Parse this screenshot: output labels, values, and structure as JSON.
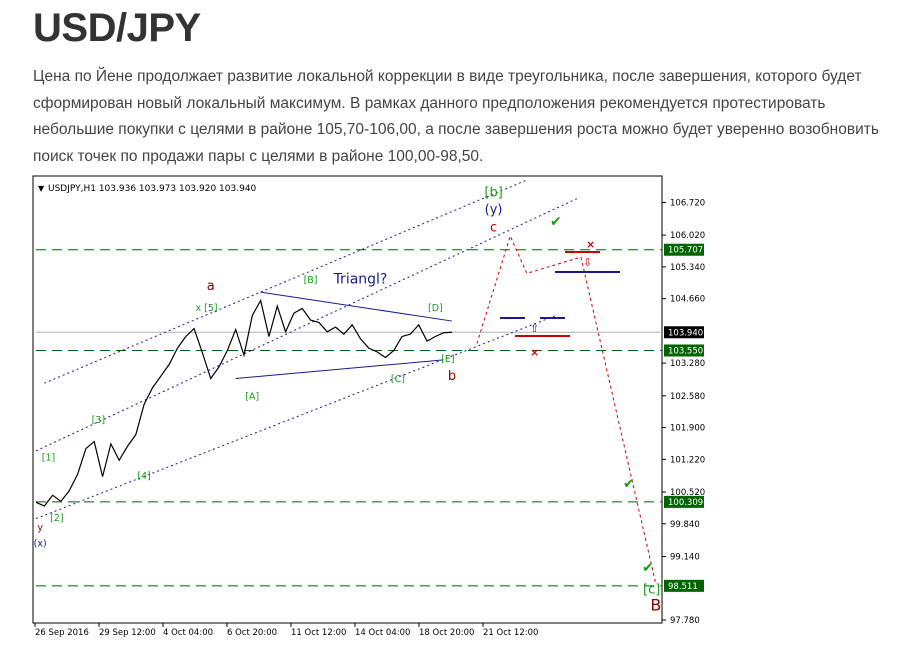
{
  "article": {
    "title": "USD/JPY",
    "paragraph": "Цена по Йене продолжает развитие локальной коррекции в виде треугольника, после завершения, которого будет сформирован новый локальный максимум. В рамках данного предположения рекомендуется протестировать небольшие покупки с целями в районе 105,70-106,00, а после завершения роста можно будет уверенно возобновить поиск точек по продажи пары с целями в районе 100,00-98,50."
  },
  "chart_data": {
    "type": "line",
    "header": "USDJPY,H1  103.936 103.973 103.920 103.940",
    "colors": {
      "price": "#000000",
      "wave_label": "#1a9c1a",
      "wave_label_major": "#8b0000",
      "wave_label_blue": "#1a1a8c",
      "forecast": "#cc0000",
      "level_line": "#006400",
      "current_price_box": "#000000"
    },
    "ylim": [
      97.78,
      107.2
    ],
    "y_ticks": [
      "106.720",
      "106.020",
      "105.340",
      "104.660",
      "103.280",
      "102.580",
      "101.900",
      "101.220",
      "100.520",
      "99.840",
      "99.140",
      "97.780"
    ],
    "x_ticks": [
      "26 Sep 2016",
      "29 Sep 12:00",
      "4 Oct 04:00",
      "6 Oct 20:00",
      "11 Oct 12:00",
      "14 Oct 04:00",
      "18 Oct 20:00",
      "21 Oct 12:00"
    ],
    "x_range_bars": [
      0,
      150
    ],
    "price_series": {
      "name": "USDJPY,H1",
      "x": [
        0,
        2,
        4,
        6,
        8,
        10,
        12,
        14,
        16,
        18,
        20,
        22,
        24,
        26,
        28,
        30,
        32,
        34,
        36,
        38,
        40,
        42,
        44,
        46,
        48,
        50,
        52,
        54,
        56,
        58,
        60,
        62,
        64,
        66,
        68,
        70,
        72,
        74,
        76,
        78,
        80,
        82,
        84,
        86,
        88,
        90,
        92,
        94,
        96,
        98,
        100,
        102,
        104,
        106,
        108,
        110,
        112,
        114,
        116
      ],
      "values": [
        100.3,
        100.22,
        100.45,
        100.32,
        100.55,
        100.9,
        101.45,
        101.6,
        100.85,
        101.55,
        101.2,
        101.5,
        101.75,
        102.4,
        102.75,
        103.0,
        103.25,
        103.6,
        103.85,
        104.02,
        103.5,
        102.95,
        103.2,
        103.55,
        104.0,
        103.45,
        104.3,
        104.62,
        103.85,
        104.5,
        103.95,
        104.35,
        104.45,
        104.2,
        104.15,
        103.95,
        104.05,
        103.9,
        104.1,
        103.8,
        103.6,
        103.52,
        103.4,
        103.55,
        103.85,
        103.9,
        104.1,
        103.75,
        103.85,
        103.93,
        103.94,
        null,
        null,
        null,
        null,
        null,
        null,
        null,
        null
      ]
    },
    "forecast_path": {
      "x": [
        106,
        114,
        118,
        131,
        149
      ],
      "values": [
        103.7,
        106.0,
        105.2,
        105.55,
        98.55
      ]
    },
    "levels": [
      {
        "value": 105.707,
        "label": "105.707"
      },
      {
        "value": 103.55,
        "label": "103.550"
      },
      {
        "value": 100.309,
        "label": "100.309"
      },
      {
        "value": 98.511,
        "label": "98.511"
      }
    ],
    "current_price": {
      "value": 103.94,
      "label": "103.940"
    },
    "channels": [
      {
        "x": [
          0,
          130
        ],
        "values": [
          101.4,
          106.8
        ],
        "style": "dotted"
      },
      {
        "x": [
          0,
          125
        ],
        "values": [
          99.95,
          104.3
        ],
        "style": "dotted"
      },
      {
        "x": [
          2,
          118
        ],
        "values": [
          102.85,
          107.2
        ],
        "style": "dotted"
      }
    ],
    "triangle_lines": [
      {
        "x": [
          54,
          100
        ],
        "values": [
          104.8,
          104.18
        ]
      },
      {
        "x": [
          48,
          98
        ],
        "values": [
          102.95,
          103.35
        ]
      }
    ],
    "annotations": [
      {
        "text": "[b]",
        "x": 110,
        "y": 106.85,
        "color": "wave_label"
      },
      {
        "text": "(y)",
        "x": 110,
        "y": 106.48,
        "color": "wave_label_blue"
      },
      {
        "text": "c",
        "x": 110,
        "y": 106.1,
        "color": "forecast"
      },
      {
        "text": "a",
        "x": 42,
        "y": 104.85,
        "color": "wave_label_major"
      },
      {
        "text": "x [5]",
        "x": 41,
        "y": 104.4,
        "color": "wave_label"
      },
      {
        "text": "[B]",
        "x": 66,
        "y": 105.0,
        "color": "wave_label"
      },
      {
        "text": "Triangl?",
        "x": 78,
        "y": 104.98,
        "color": "wave_label_blue"
      },
      {
        "text": "[D]",
        "x": 96,
        "y": 104.4,
        "color": "wave_label"
      },
      {
        "text": "[A]",
        "x": 52,
        "y": 102.5,
        "color": "wave_label"
      },
      {
        "text": "[C]",
        "x": 87,
        "y": 102.88,
        "color": "wave_label"
      },
      {
        "text": "[E]",
        "x": 99,
        "y": 103.3,
        "color": "wave_label"
      },
      {
        "text": "b",
        "x": 100,
        "y": 102.92,
        "color": "wave_label_major"
      },
      {
        "text": "[3]",
        "x": 15,
        "y": 102.0,
        "color": "wave_label"
      },
      {
        "text": "[1]",
        "x": 3,
        "y": 101.2,
        "color": "wave_label"
      },
      {
        "text": "[4]",
        "x": 26,
        "y": 100.8,
        "color": "wave_label"
      },
      {
        "text": "[2]",
        "x": 5,
        "y": 99.9,
        "color": "wave_label"
      },
      {
        "text": "y",
        "x": 1,
        "y": 99.7,
        "color": "wave_label_major"
      },
      {
        "text": "(x)",
        "x": 1,
        "y": 99.35,
        "color": "wave_label_blue"
      },
      {
        "text": "[c]",
        "x": 148,
        "y": 98.35,
        "color": "wave_label"
      },
      {
        "text": "B",
        "x": 149,
        "y": 97.98,
        "color": "wave_label_major"
      }
    ]
  }
}
